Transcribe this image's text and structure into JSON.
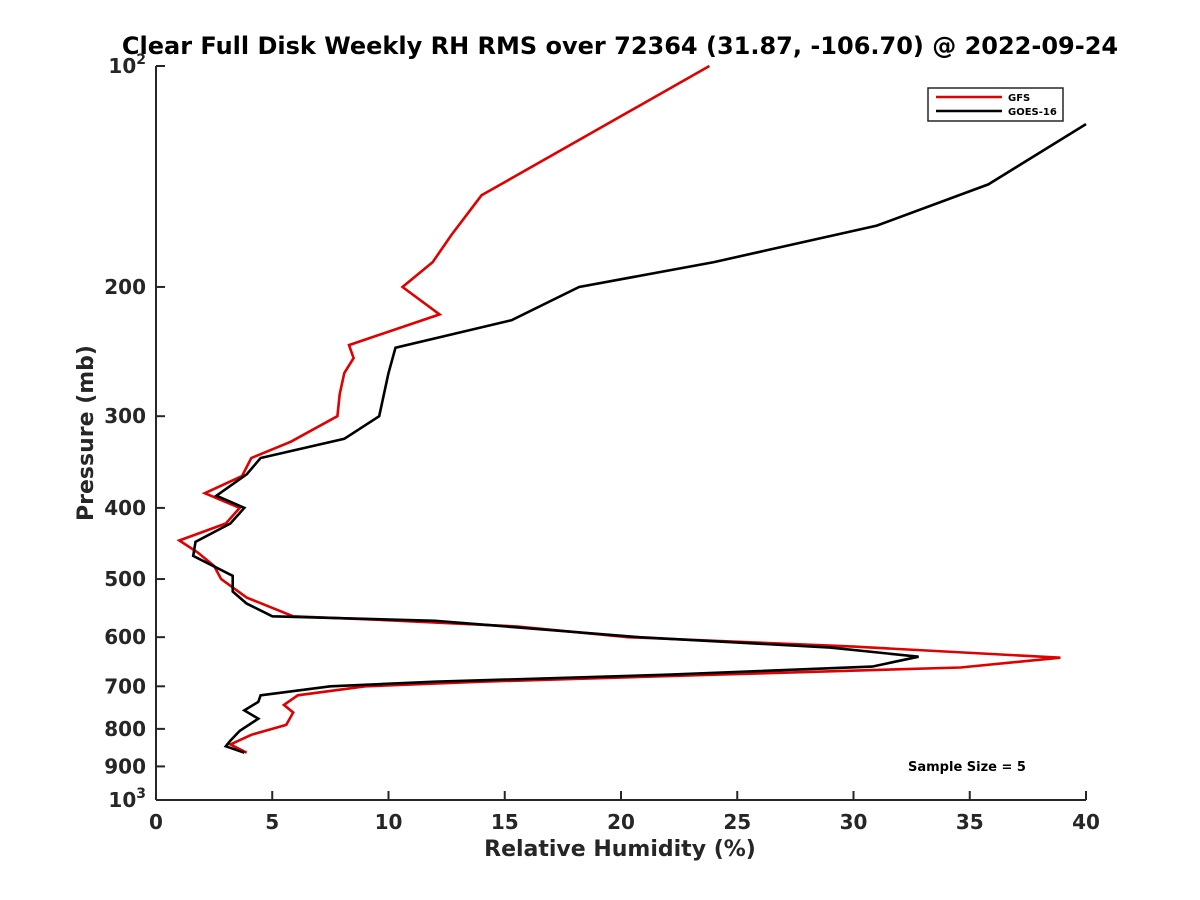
{
  "chart_data": {
    "type": "line",
    "title": "Clear Full Disk Weekly RH RMS over 72364 (31.87, -106.70) @ 2022-09-24",
    "xlabel": "Relative Humidity (%)",
    "ylabel": "Pressure (mb)",
    "xlim": [
      0,
      40
    ],
    "ylim": [
      100,
      1000
    ],
    "y_scale": "log",
    "y_reversed": true,
    "grid": false,
    "legend_position": "top-right",
    "x_ticks": [
      "0",
      "5",
      "10",
      "15",
      "20",
      "25",
      "30",
      "35",
      "40"
    ],
    "y_ticks": [
      {
        "value": 100,
        "base": "10",
        "exp": "2"
      },
      {
        "value": 200,
        "base": "200",
        "exp": ""
      },
      {
        "value": 300,
        "base": "300",
        "exp": ""
      },
      {
        "value": 400,
        "base": "400",
        "exp": ""
      },
      {
        "value": 500,
        "base": "500",
        "exp": ""
      },
      {
        "value": 600,
        "base": "600",
        "exp": ""
      },
      {
        "value": 700,
        "base": "700",
        "exp": ""
      },
      {
        "value": 800,
        "base": "800",
        "exp": ""
      },
      {
        "value": 900,
        "base": "900",
        "exp": ""
      },
      {
        "value": 1000,
        "base": "10",
        "exp": "3"
      }
    ],
    "annotation": "Sample Size = 5",
    "series": [
      {
        "name": "GFS",
        "color": "#e00000",
        "points": [
          [
            23.8,
            100
          ],
          [
            14.0,
            150
          ],
          [
            12.7,
            170
          ],
          [
            11.9,
            185
          ],
          [
            10.6,
            200
          ],
          [
            12.2,
            218
          ],
          [
            8.3,
            240
          ],
          [
            8.5,
            250
          ],
          [
            8.1,
            262
          ],
          [
            7.9,
            280
          ],
          [
            7.8,
            300
          ],
          [
            5.8,
            325
          ],
          [
            4.1,
            342
          ],
          [
            3.7,
            362
          ],
          [
            2.1,
            382
          ],
          [
            3.6,
            400
          ],
          [
            3.0,
            420
          ],
          [
            1.0,
            443
          ],
          [
            1.8,
            460
          ],
          [
            2.5,
            480
          ],
          [
            2.8,
            500
          ],
          [
            3.9,
            530
          ],
          [
            5.9,
            562
          ],
          [
            9.5,
            568
          ],
          [
            15.5,
            580
          ],
          [
            20.3,
            600
          ],
          [
            30.0,
            618
          ],
          [
            38.9,
            640
          ],
          [
            34.6,
            660
          ],
          [
            24.0,
            675
          ],
          [
            14.0,
            690
          ],
          [
            9.0,
            700
          ],
          [
            6.1,
            720
          ],
          [
            5.5,
            742
          ],
          [
            5.9,
            760
          ],
          [
            5.6,
            790
          ],
          [
            4.1,
            815
          ],
          [
            3.2,
            840
          ],
          [
            3.9,
            862
          ]
        ]
      },
      {
        "name": "GOES-16",
        "color": "#000000",
        "points": [
          [
            40.0,
            120
          ],
          [
            35.8,
            145
          ],
          [
            31.0,
            165
          ],
          [
            24.0,
            185
          ],
          [
            18.2,
            200
          ],
          [
            15.3,
            222
          ],
          [
            10.3,
            242
          ],
          [
            10.0,
            262
          ],
          [
            9.6,
            300
          ],
          [
            8.1,
            322
          ],
          [
            4.5,
            342
          ],
          [
            3.9,
            360
          ],
          [
            2.6,
            385
          ],
          [
            3.8,
            400
          ],
          [
            3.2,
            420
          ],
          [
            1.7,
            445
          ],
          [
            1.6,
            465
          ],
          [
            3.3,
            495
          ],
          [
            3.3,
            512
          ],
          [
            3.3,
            520
          ],
          [
            3.9,
            540
          ],
          [
            5.0,
            562
          ],
          [
            12.0,
            570
          ],
          [
            20.8,
            600
          ],
          [
            29.0,
            620
          ],
          [
            32.8,
            638
          ],
          [
            30.8,
            658
          ],
          [
            22.0,
            675
          ],
          [
            12.0,
            690
          ],
          [
            7.5,
            700
          ],
          [
            4.5,
            720
          ],
          [
            4.4,
            735
          ],
          [
            3.8,
            755
          ],
          [
            4.4,
            775
          ],
          [
            3.6,
            805
          ],
          [
            3.2,
            830
          ],
          [
            3.0,
            845
          ],
          [
            3.8,
            862
          ]
        ]
      }
    ]
  }
}
